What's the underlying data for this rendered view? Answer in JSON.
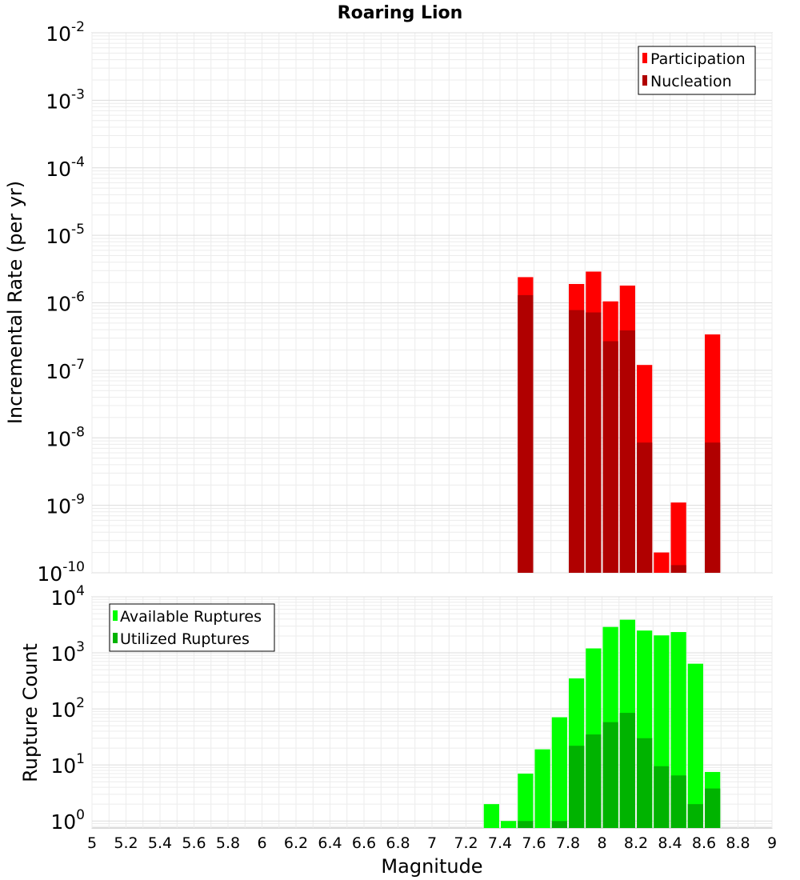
{
  "chart_data": [
    {
      "type": "bar",
      "title": "Roaring Lion",
      "xlabel": "",
      "ylabel": "Incremental Rate (per yr)",
      "yscale": "log",
      "xlim": [
        5,
        9
      ],
      "ylim": [
        1e-10,
        0.01
      ],
      "grid": true,
      "legend_position": "top-right",
      "x": [
        7.55,
        7.85,
        7.95,
        8.05,
        8.15,
        8.25,
        8.35,
        8.45,
        8.65
      ],
      "series": [
        {
          "name": "Participation",
          "color": "#ff0000",
          "values": [
            2.4e-06,
            1.9e-06,
            2.9e-06,
            1.05e-06,
            1.8e-06,
            1.2e-07,
            2e-10,
            1.1e-09,
            3.4e-07
          ]
        },
        {
          "name": "Nucleation",
          "color": "#b00000",
          "values": [
            1.3e-06,
            7.8e-07,
            7.2e-07,
            2.7e-07,
            3.9e-07,
            8.5e-09,
            null,
            1.3e-10,
            8.5e-09
          ]
        }
      ],
      "y_ticks": [
        {
          "base": "10",
          "exp": "-2"
        },
        {
          "base": "10",
          "exp": "-3"
        },
        {
          "base": "10",
          "exp": "-4"
        },
        {
          "base": "10",
          "exp": "-5"
        },
        {
          "base": "10",
          "exp": "-6"
        },
        {
          "base": "10",
          "exp": "-7"
        },
        {
          "base": "10",
          "exp": "-8"
        },
        {
          "base": "10",
          "exp": "-9"
        },
        {
          "base": "10",
          "exp": "-10"
        }
      ]
    },
    {
      "type": "bar",
      "title": "",
      "xlabel": "Magnitude",
      "ylabel": "Rupture Count",
      "yscale": "log",
      "xlim": [
        5,
        9
      ],
      "ylim": [
        0.75,
        10000
      ],
      "grid": true,
      "legend_position": "top-left",
      "x": [
        7.35,
        7.45,
        7.55,
        7.65,
        7.75,
        7.85,
        7.95,
        8.05,
        8.15,
        8.25,
        8.35,
        8.45,
        8.55,
        8.65
      ],
      "series": [
        {
          "name": "Available Ruptures",
          "color": "#00ff00",
          "values": [
            2,
            1,
            7,
            19,
            71,
            350,
            1200,
            2900,
            3900,
            2500,
            2050,
            2350,
            640,
            7.5
          ]
        },
        {
          "name": "Utilized Ruptures",
          "color": "#00b300",
          "values": [
            null,
            null,
            1,
            null,
            1,
            22,
            35,
            58,
            85,
            30,
            9.5,
            6.5,
            2,
            3.8
          ]
        }
      ],
      "y_ticks": [
        {
          "base": "10",
          "exp": "4"
        },
        {
          "base": "10",
          "exp": "3"
        },
        {
          "base": "10",
          "exp": "2"
        },
        {
          "base": "10",
          "exp": "1"
        },
        {
          "base": "10",
          "exp": "0"
        }
      ],
      "x_ticks": [
        "5",
        "5.2",
        "5.4",
        "5.6",
        "5.8",
        "6",
        "6.2",
        "6.4",
        "6.6",
        "6.8",
        "7",
        "7.2",
        "7.4",
        "7.6",
        "7.8",
        "8",
        "8.2",
        "8.4",
        "8.6",
        "8.8",
        "9"
      ]
    }
  ]
}
